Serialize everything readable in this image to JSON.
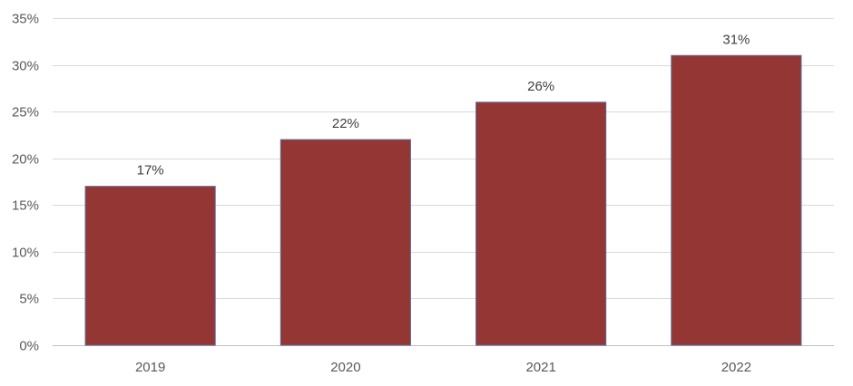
{
  "chart_data": {
    "type": "bar",
    "categories": [
      "2019",
      "2020",
      "2021",
      "2022"
    ],
    "values": [
      17,
      22,
      26,
      31
    ],
    "data_labels": [
      "17%",
      "22%",
      "26%",
      "31%"
    ],
    "title": "",
    "xlabel": "",
    "ylabel": "",
    "ylim": [
      0,
      35
    ],
    "y_ticks": [
      0,
      5,
      10,
      15,
      20,
      25,
      30,
      35
    ],
    "y_tick_labels": [
      "0%",
      "5%",
      "10%",
      "15%",
      "20%",
      "25%",
      "30%",
      "35%"
    ],
    "grid": true,
    "legend": "none",
    "bar_color": "#943634",
    "bar_edge_color": "#5b6a9a"
  }
}
